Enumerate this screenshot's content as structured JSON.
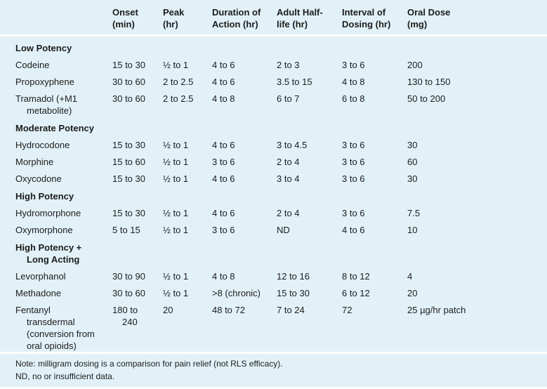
{
  "columns": [
    {
      "key": "onset",
      "lines": [
        "Onset",
        "(min)"
      ]
    },
    {
      "key": "peak",
      "lines": [
        "Peak",
        "(hr)"
      ]
    },
    {
      "key": "duration",
      "lines": [
        "Duration of",
        "Action (hr)"
      ]
    },
    {
      "key": "half_life",
      "lines": [
        "Adult Half-",
        "life (hr)"
      ]
    },
    {
      "key": "interval",
      "lines": [
        "Interval of",
        "Dosing (hr)"
      ]
    },
    {
      "key": "dose",
      "lines": [
        "Oral Dose",
        "(mg)"
      ]
    }
  ],
  "sections": [
    {
      "label_lines": [
        "Low Potency"
      ],
      "rows": [
        {
          "drug_lines": [
            "Codeine"
          ],
          "onset_lines": [
            "15 to 30"
          ],
          "peak": "½ to 1",
          "duration": "4 to 6",
          "half_life": "2 to 3",
          "interval": "3 to 6",
          "dose": "200"
        },
        {
          "drug_lines": [
            "Propoxyphene"
          ],
          "onset_lines": [
            "30 to 60"
          ],
          "peak": "2 to 2.5",
          "duration": "4 to 6",
          "half_life": "3.5 to 15",
          "interval": "4 to 8",
          "dose": "130 to 150"
        },
        {
          "drug_lines": [
            "Tramadol (+M1",
            "metabolite)"
          ],
          "onset_lines": [
            "30 to 60"
          ],
          "peak": "2 to 2.5",
          "duration": "4 to 8",
          "half_life": "6 to 7",
          "interval": "6 to 8",
          "dose": "50 to 200"
        }
      ]
    },
    {
      "label_lines": [
        "Moderate Potency"
      ],
      "rows": [
        {
          "drug_lines": [
            "Hydrocodone"
          ],
          "onset_lines": [
            "15 to 30"
          ],
          "peak": "½ to 1",
          "duration": "4 to 6",
          "half_life": "3 to 4.5",
          "interval": "3 to 6",
          "dose": "30"
        },
        {
          "drug_lines": [
            "Morphine"
          ],
          "onset_lines": [
            "15 to 60"
          ],
          "peak": "½ to 1",
          "duration": "3 to 6",
          "half_life": "2 to 4",
          "interval": "3 to 6",
          "dose": "60"
        },
        {
          "drug_lines": [
            "Oxycodone"
          ],
          "onset_lines": [
            "15 to 30"
          ],
          "peak": "½ to 1",
          "duration": "4 to 6",
          "half_life": "3 to 4",
          "interval": "3 to 6",
          "dose": "30"
        }
      ]
    },
    {
      "label_lines": [
        "High Potency"
      ],
      "rows": [
        {
          "drug_lines": [
            "Hydromorphone"
          ],
          "onset_lines": [
            "15 to 30"
          ],
          "peak": "½ to 1",
          "duration": "4 to 6",
          "half_life": "2 to 4",
          "interval": "3 to 6",
          "dose": "7.5"
        },
        {
          "drug_lines": [
            "Oxymorphone"
          ],
          "onset_lines": [
            "5 to 15"
          ],
          "peak": "½ to 1",
          "duration": "3 to 6",
          "half_life": "ND",
          "interval": "4 to 6",
          "dose": "10"
        }
      ]
    },
    {
      "label_lines": [
        "High Potency +",
        "Long Acting"
      ],
      "rows": [
        {
          "drug_lines": [
            "Levorphanol"
          ],
          "onset_lines": [
            "30 to 90"
          ],
          "peak": "½ to 1",
          "duration": "4 to 8",
          "half_life": "12 to 16",
          "interval": "8 to 12",
          "dose": "4"
        },
        {
          "drug_lines": [
            "Methadone"
          ],
          "onset_lines": [
            "30 to 60"
          ],
          "peak": "½ to 1",
          "duration": ">8 (chronic)",
          "half_life": "15 to 30",
          "interval": "6 to 12",
          "dose": "20"
        },
        {
          "drug_lines": [
            "Fentanyl",
            "transdermal",
            "(conversion from",
            "oral opioids)"
          ],
          "onset_lines": [
            "180 to",
            "240"
          ],
          "peak": "20",
          "duration": "48 to 72",
          "half_life": "7 to 24",
          "interval": "72",
          "dose": "25 µg/hr patch"
        }
      ]
    }
  ],
  "notes": [
    "Note: milligram dosing is a comparison for pain relief (not RLS efficacy).",
    "ND, no or insufficient data."
  ],
  "colors": {
    "background": "#e1f1f7",
    "rule": "#fcfefe",
    "text": "#1c1c1c"
  }
}
